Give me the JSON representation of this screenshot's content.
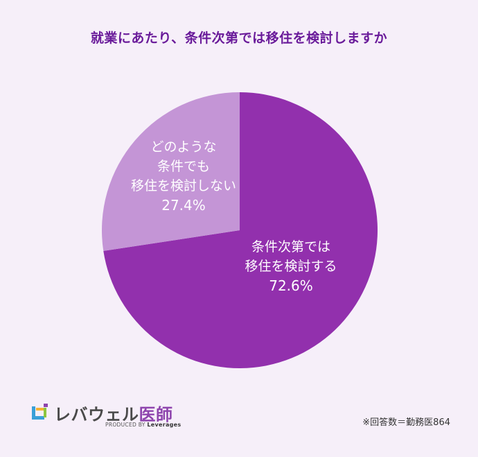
{
  "chart_data": {
    "type": "pie",
    "title": "就業にあたり、条件次第では移住を検討しますか",
    "slices": [
      {
        "label_lines": [
          "条件次第では",
          "移住を検討する"
        ],
        "value": 72.6,
        "value_label": "72.6%",
        "color": "#9230ad"
      },
      {
        "label_lines": [
          "どのような",
          "条件でも",
          "移住を検討しない"
        ],
        "value": 27.4,
        "value_label": "27.4%",
        "color": "#c495d6"
      }
    ]
  },
  "logo": {
    "name_main": "レバウェル",
    "name_accent": "医師",
    "tagline_prefix": "PRODUCED BY",
    "tagline_brand": "Leverages"
  },
  "footnote": "※回答数＝勤務医864",
  "colors": {
    "background": "#f6eff9",
    "title": "#6a1b9a"
  }
}
